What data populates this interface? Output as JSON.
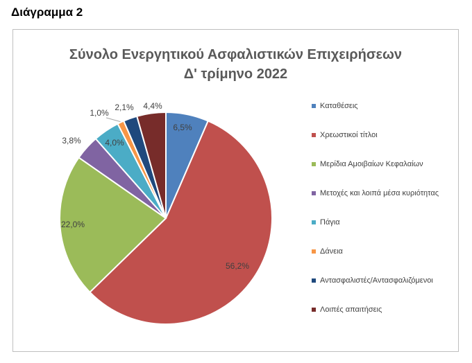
{
  "page_heading": "Διάγραμμα 2",
  "chart_data": {
    "type": "pie",
    "title_line1": "Σύνολο Ενεργητικού Ασφαλιστικών Επιχειρήσεων",
    "title_line2": "Δ' τρίμηνο 2022",
    "legend_position": "right",
    "slices": [
      {
        "label": "Καταθέσεις",
        "value": 6.5,
        "display": "6,5%",
        "color": "#4f81bd"
      },
      {
        "label": "Χρεωστικοί τίτλοι",
        "value": 56.2,
        "display": "56,2%",
        "color": "#c0504d"
      },
      {
        "label": "Μερίδια Αμοιβαίων Κεφαλαίων",
        "value": 22.0,
        "display": "22,0%",
        "color": "#9bbb59"
      },
      {
        "label": "Μετοχές και λοιπά μέσα κυριότητας",
        "value": 3.8,
        "display": "3,8%",
        "color": "#8064a2"
      },
      {
        "label": "Πάγια",
        "value": 4.0,
        "display": "4,0%",
        "color": "#4bacc6"
      },
      {
        "label": "Δάνεια",
        "value": 1.0,
        "display": "1,0%",
        "color": "#f79646"
      },
      {
        "label": "Αντασφαλιστές/Αντασφαλιζόμενοι",
        "value": 2.1,
        "display": "2,1%",
        "color": "#1f497d"
      },
      {
        "label": "Λοιπές απαιτήσεις",
        "value": 4.4,
        "display": "4,4%",
        "color": "#772c2a"
      }
    ]
  }
}
